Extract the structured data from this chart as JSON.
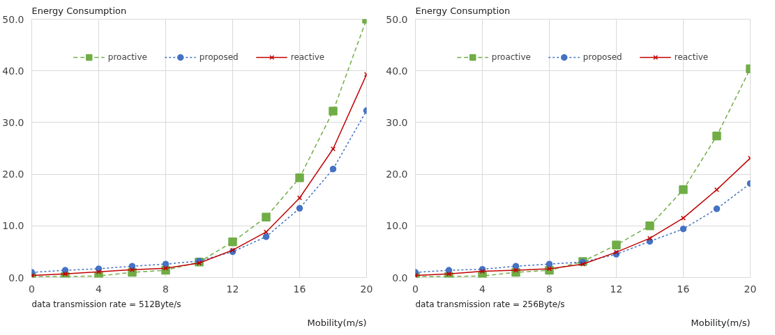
{
  "chart_data": [
    {
      "type": "line",
      "title": "Energy Consumption",
      "xlabel": "Mobility(m/s)",
      "annotations": [
        "data transmission rate = 512Byte/s"
      ],
      "x": [
        0,
        2,
        4,
        6,
        8,
        10,
        12,
        14,
        16,
        18,
        20
      ],
      "series": [
        {
          "name": "proactive",
          "color": "#70ad47",
          "marker": "square",
          "line_style": "dashed",
          "values": [
            0.2,
            0.2,
            0.3,
            1.0,
            1.4,
            3.0,
            6.9,
            11.7,
            19.3,
            32.2,
            50.0
          ]
        },
        {
          "name": "proposed",
          "color": "#4472c4",
          "marker": "circle",
          "line_style": "dotted",
          "values": [
            1.0,
            1.4,
            1.7,
            2.2,
            2.6,
            3.2,
            5.0,
            7.9,
            13.4,
            21.0,
            32.3
          ]
        },
        {
          "name": "reactive",
          "color": "#c00000",
          "marker": "cross",
          "line_style": "solid",
          "values": [
            0.4,
            0.7,
            1.1,
            1.5,
            1.8,
            2.8,
            5.3,
            8.8,
            15.4,
            24.9,
            39.3
          ]
        }
      ],
      "xlim": [
        0,
        20
      ],
      "xticks": [
        0,
        4,
        8,
        12,
        16,
        20
      ],
      "ylim": [
        0,
        50
      ],
      "yticks": [
        {
          "value": 0,
          "label": "0.0"
        },
        {
          "value": 10,
          "label": "10.0"
        },
        {
          "value": 20,
          "label": "20.0"
        },
        {
          "value": 30,
          "label": "30.0"
        },
        {
          "value": 40,
          "label": "40.0"
        },
        {
          "value": 50,
          "label": "50.0"
        }
      ],
      "grid": true,
      "legend": "top"
    },
    {
      "type": "line",
      "title": "Energy Consumption",
      "xlabel": "Mobility(m/s)",
      "annotations": [
        "data transmission rate = 256Byte/s"
      ],
      "x": [
        0,
        2,
        4,
        6,
        8,
        10,
        12,
        14,
        16,
        18,
        20
      ],
      "series": [
        {
          "name": "proactive",
          "color": "#70ad47",
          "marker": "square",
          "line_style": "dashed",
          "values": [
            0.2,
            0.2,
            0.3,
            1.0,
            1.4,
            3.1,
            6.3,
            10.0,
            17.0,
            27.4,
            40.4
          ]
        },
        {
          "name": "proposed",
          "color": "#4472c4",
          "marker": "circle",
          "line_style": "dotted",
          "values": [
            1.0,
            1.4,
            1.6,
            2.2,
            2.6,
            3.0,
            4.5,
            7.0,
            9.4,
            13.3,
            18.2
          ]
        },
        {
          "name": "reactive",
          "color": "#c00000",
          "marker": "cross",
          "line_style": "solid",
          "values": [
            0.4,
            0.7,
            1.2,
            1.4,
            1.7,
            2.6,
            4.9,
            7.6,
            11.5,
            17.0,
            23.1
          ]
        }
      ],
      "xlim": [
        0,
        20
      ],
      "xticks": [
        0,
        4,
        8,
        12,
        16,
        20
      ],
      "ylim": [
        0,
        50
      ],
      "yticks": [
        {
          "value": 0,
          "label": "0.0"
        },
        {
          "value": 10,
          "label": "10.0"
        },
        {
          "value": 20,
          "label": "20.0"
        },
        {
          "value": 30,
          "label": "30.0"
        },
        {
          "value": 40,
          "label": "40.0"
        },
        {
          "value": 50,
          "label": "50.0"
        }
      ],
      "grid": true,
      "legend": "top"
    }
  ]
}
